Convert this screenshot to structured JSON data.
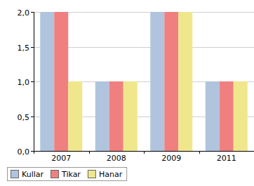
{
  "chart_data": {
    "type": "bar",
    "categories": [
      "2007",
      "2008",
      "2009",
      "2011"
    ],
    "series": [
      {
        "name": "Kullar",
        "color": "#b0c4de",
        "values": [
          2,
          1,
          2,
          1
        ]
      },
      {
        "name": "Tikar",
        "color": "#f08080",
        "values": [
          2,
          1,
          2,
          1
        ]
      },
      {
        "name": "Hanar",
        "color": "#f0e68c",
        "values": [
          1,
          1,
          2,
          1
        ]
      }
    ],
    "ylim": [
      0,
      2
    ],
    "yticks": [
      {
        "value": 0,
        "label": "0,0"
      },
      {
        "value": 0.5,
        "label": "0,5"
      },
      {
        "value": 1,
        "label": "1,0"
      },
      {
        "value": 1.5,
        "label": "1,5"
      },
      {
        "value": 2,
        "label": "2,0"
      }
    ],
    "grid": true,
    "legend": "bottom-left"
  }
}
